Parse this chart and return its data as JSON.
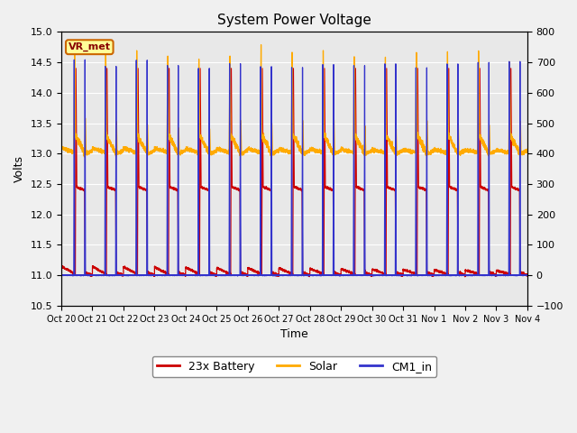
{
  "title": "System Power Voltage",
  "xlabel": "Time",
  "ylabel_left": "Volts",
  "ylim_left": [
    10.5,
    15.0
  ],
  "ylim_right": [
    -100,
    800
  ],
  "yticks_left": [
    10.5,
    11.0,
    11.5,
    12.0,
    12.5,
    13.0,
    13.5,
    14.0,
    14.5,
    15.0
  ],
  "yticks_right": [
    -100,
    0,
    100,
    200,
    300,
    400,
    500,
    600,
    700,
    800
  ],
  "xtick_labels": [
    "Oct 20",
    "Oct 21",
    "Oct 22",
    "Oct 23",
    "Oct 24",
    "Oct 25",
    "Oct 26",
    "Oct 27",
    "Oct 28",
    "Oct 29",
    "Oct 30",
    "Oct 31",
    "Nov 1",
    "Nov 2",
    "Nov 3",
    "Nov 4"
  ],
  "colors": {
    "battery": "#cc0000",
    "solar": "#ffaa00",
    "cm1_in": "#3333cc",
    "background": "#e8e8e8",
    "grid": "#ffffff",
    "annotation_box_face": "#ffff99",
    "annotation_box_edge": "#cc6600"
  },
  "annotation_text": "VR_met",
  "legend_labels": [
    "23x Battery",
    "Solar",
    "CM1_in"
  ],
  "n_days": 15,
  "pts_per_day": 480
}
